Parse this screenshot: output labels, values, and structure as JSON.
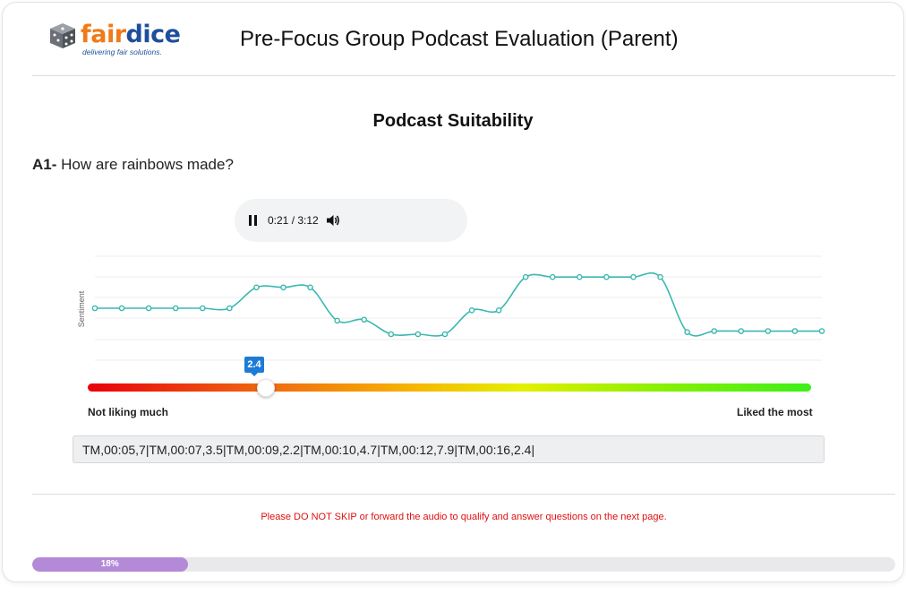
{
  "header": {
    "logo": {
      "brand_left": "fair",
      "brand_right": "dice",
      "tagline": "delivering fair solutions."
    },
    "title": "Pre-Focus Group Podcast Evaluation (Parent)"
  },
  "section": {
    "title": "Podcast Suitability"
  },
  "question": {
    "id": "A1-",
    "text": "How are rainbows made?"
  },
  "audio_player": {
    "time": "0:21 / 3:12",
    "state": "playing"
  },
  "chart_data": {
    "type": "line",
    "ylabel": "Sentiment",
    "xlabel": "",
    "ylim": [
      0,
      10
    ],
    "values": [
      5,
      5,
      5,
      5,
      5,
      5,
      7,
      7,
      7,
      3.8,
      3.9,
      2.5,
      2.5,
      2.5,
      4.8,
      4.8,
      8,
      8,
      8,
      8,
      8,
      8,
      2.7,
      2.8,
      2.8,
      2.8,
      2.8,
      2.8
    ],
    "series_color": "#3ab8b0"
  },
  "slider": {
    "value": "2.4",
    "min": 0,
    "max": 10,
    "label_min": "Not liking much",
    "label_max": "Liked the most"
  },
  "response_log": "TM,00:05,7|TM,00:07,3.5|TM,00:09,2.2|TM,00:10,4.7|TM,00:12,7.9|TM,00:16,2.4|",
  "warning": "Please DO NOT SKIP or forward the audio to qualify and answer questions on the next page.",
  "progress": {
    "percent": 18,
    "label": "18%"
  }
}
